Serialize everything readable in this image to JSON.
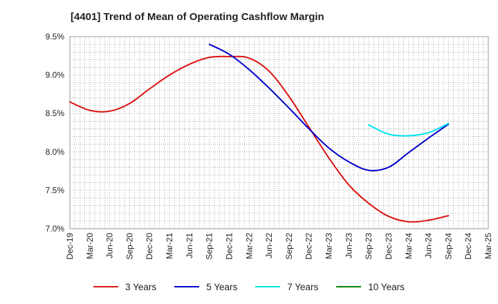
{
  "chart_data": {
    "type": "line",
    "title": "[4401]  Trend of Mean of Operating Cashflow Margin",
    "xlabel": "",
    "ylabel": "",
    "categories": [
      "Dec-19",
      "Mar-20",
      "Jun-20",
      "Sep-20",
      "Dec-20",
      "Mar-21",
      "Jun-21",
      "Sep-21",
      "Dec-21",
      "Mar-22",
      "Jun-22",
      "Sep-22",
      "Dec-22",
      "Mar-23",
      "Jun-23",
      "Sep-23",
      "Dec-23",
      "Mar-24",
      "Jun-24",
      "Sep-24",
      "Dec-24",
      "Mar-25"
    ],
    "ylim": [
      7.0,
      9.5
    ],
    "yticks": [
      7.0,
      7.5,
      8.0,
      8.5,
      9.0,
      9.5
    ],
    "ytick_labels": [
      "7.0%",
      "7.5%",
      "8.0%",
      "8.5%",
      "9.0%",
      "9.5%"
    ],
    "grid": true,
    "legend_position": "bottom",
    "series": [
      {
        "name": "3 Years",
        "color": "#dd1111",
        "values": [
          8.65,
          8.54,
          8.53,
          8.63,
          8.82,
          9.0,
          9.14,
          9.23,
          9.24,
          9.22,
          9.05,
          8.72,
          8.32,
          7.92,
          7.57,
          7.33,
          7.16,
          7.09,
          7.11,
          7.17,
          null,
          null
        ]
      },
      {
        "name": "5 Years",
        "color": "#0000cc",
        "values": [
          null,
          null,
          null,
          null,
          null,
          null,
          null,
          9.4,
          9.27,
          9.07,
          8.83,
          8.57,
          8.3,
          8.05,
          7.87,
          7.76,
          7.8,
          7.99,
          8.18,
          8.36,
          null,
          null
        ]
      },
      {
        "name": "7 Years",
        "color": "#00e5ee",
        "values": [
          null,
          null,
          null,
          null,
          null,
          null,
          null,
          null,
          null,
          null,
          null,
          null,
          null,
          null,
          null,
          8.35,
          8.23,
          8.21,
          8.25,
          8.37,
          null,
          null
        ]
      },
      {
        "name": "10 Years",
        "color": "#008000",
        "values": [
          null,
          null,
          null,
          null,
          null,
          null,
          null,
          null,
          null,
          null,
          null,
          null,
          null,
          null,
          null,
          null,
          null,
          null,
          null,
          null,
          null,
          null
        ]
      }
    ]
  }
}
